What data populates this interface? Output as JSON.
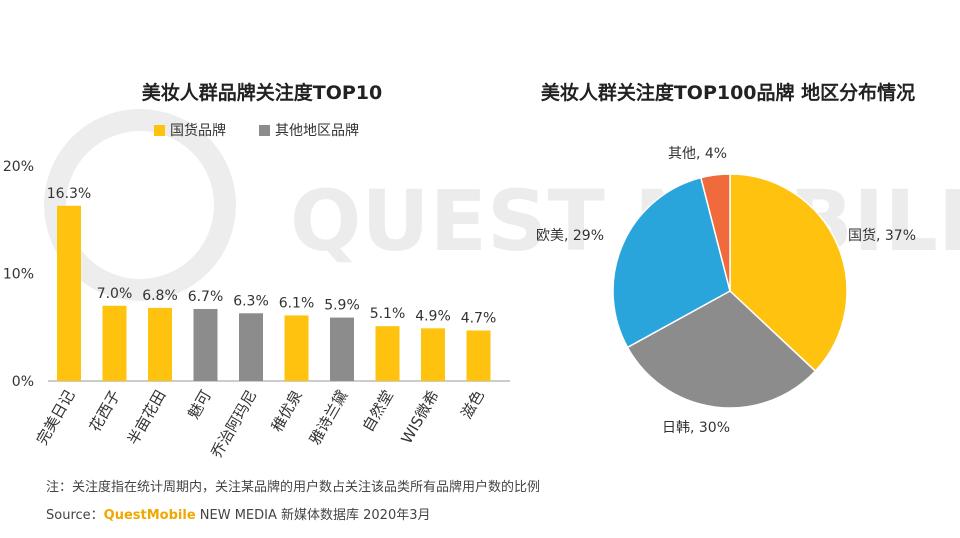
{
  "watermark": "QUEST MOBILE",
  "chart_data": [
    {
      "type": "bar",
      "title": "美妆人群品牌关注度TOP10",
      "legend": [
        {
          "name": "国货品牌",
          "color": "#ffc20e"
        },
        {
          "name": "其他地区品牌",
          "color": "#8c8c8c"
        }
      ],
      "categories": [
        "完美日记",
        "花西子",
        "半亩花田",
        "魅可",
        "乔治阿玛尼",
        "稚优泉",
        "雅诗兰黛",
        "自然堂",
        "WIS微希",
        "滋色"
      ],
      "values": [
        16.3,
        7.0,
        6.8,
        6.7,
        6.3,
        6.1,
        5.9,
        5.1,
        4.9,
        4.7
      ],
      "value_labels": [
        "16.3%",
        "7.0%",
        "6.8%",
        "6.7%",
        "6.3%",
        "6.1%",
        "5.9%",
        "5.1%",
        "4.9%",
        "4.7%"
      ],
      "groups": [
        "国货品牌",
        "国货品牌",
        "国货品牌",
        "其他地区品牌",
        "其他地区品牌",
        "国货品牌",
        "其他地区品牌",
        "国货品牌",
        "国货品牌",
        "国货品牌"
      ],
      "yticks": [
        0,
        10,
        20
      ],
      "ytick_labels": [
        "0%",
        "10%",
        "20%"
      ],
      "ylim": [
        0,
        20
      ],
      "xlabel": "",
      "ylabel": ""
    },
    {
      "type": "pie",
      "title": "美妆人群关注度TOP100品牌 地区分布情况",
      "slices": [
        {
          "name": "国货",
          "value": 37,
          "label": "国货, 37%",
          "color": "#ffc20e"
        },
        {
          "name": "日韩",
          "value": 30,
          "label": "日韩, 30%",
          "color": "#8c8c8c"
        },
        {
          "name": "欧美",
          "value": 29,
          "label": "欧美, 29%",
          "color": "#2aa5dc"
        },
        {
          "name": "其他",
          "value": 4,
          "label": "其他, 4%",
          "color": "#f06a3c"
        }
      ]
    }
  ],
  "footer": {
    "note": "注：关注度指在统计周期内，关注某品牌的用户数占关注该品类所有品牌用户数的比例",
    "source_prefix": "Source：",
    "source_brand": "QuestMobile",
    "source_rest": " NEW MEDIA 新媒体数据库 2020年3月"
  }
}
